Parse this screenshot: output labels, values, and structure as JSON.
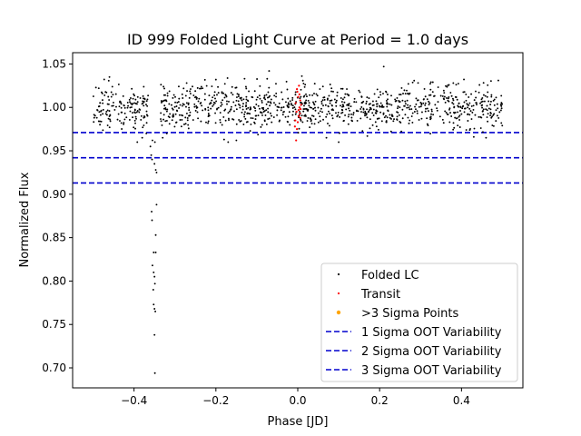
{
  "chart_data": {
    "type": "scatter",
    "title": "ID 999 Folded Light Curve at Period = 1.0 days",
    "xlabel": "Phase [JD]",
    "ylabel": "Normalized Flux",
    "xlim": [
      -0.55,
      0.55
    ],
    "ylim": [
      0.677,
      1.063
    ],
    "xticks": [
      -0.4,
      -0.2,
      0.0,
      0.2,
      0.4
    ],
    "xtick_labels": [
      "−0.4",
      "−0.2",
      "0.0",
      "0.2",
      "0.4"
    ],
    "yticks": [
      0.7,
      0.75,
      0.8,
      0.85,
      0.9,
      0.95,
      1.0,
      1.05
    ],
    "ytick_labels": [
      "0.70",
      "0.75",
      "0.80",
      "0.85",
      "0.90",
      "0.95",
      "1.00",
      "1.05"
    ],
    "grid": false,
    "legend_position": "bottom-right",
    "folded_phase_range": [
      -0.5,
      0.5
    ],
    "folded_flux_center": 1.0,
    "series": [
      {
        "name": "Folded LC",
        "kind": "scatter",
        "color": "#000000",
        "points": [
          [
            -0.36,
            0.955
          ],
          [
            -0.358,
            0.945
          ],
          [
            -0.356,
            0.94
          ],
          [
            -0.35,
            0.935
          ],
          [
            -0.347,
            0.928
          ],
          [
            -0.345,
            0.925
          ],
          [
            -0.357,
            0.88
          ],
          [
            -0.356,
            0.87
          ],
          [
            -0.345,
            0.888
          ],
          [
            -0.347,
            0.853
          ],
          [
            -0.352,
            0.833
          ],
          [
            -0.347,
            0.833
          ],
          [
            -0.355,
            0.818
          ],
          [
            -0.352,
            0.81
          ],
          [
            -0.35,
            0.805
          ],
          [
            -0.349,
            0.797
          ],
          [
            -0.353,
            0.79
          ],
          [
            -0.352,
            0.773
          ],
          [
            -0.35,
            0.768
          ],
          [
            -0.348,
            0.765
          ],
          [
            -0.35,
            0.738
          ],
          [
            -0.349,
            0.694
          ],
          [
            -0.355,
            0.962
          ],
          [
            -0.349,
            0.96
          ],
          [
            -0.37,
            0.97
          ],
          [
            -0.38,
            0.965
          ],
          [
            -0.392,
            0.96
          ],
          [
            -0.33,
            0.965
          ],
          [
            -0.32,
            0.97
          ],
          [
            0.21,
            1.047
          ],
          [
            -0.07,
            1.042
          ],
          [
            0.01,
            1.036
          ],
          [
            -0.46,
            1.035
          ],
          [
            -0.13,
            1.033
          ],
          [
            -0.2,
            1.032
          ],
          [
            0.49,
            1.031
          ],
          [
            0.33,
            1.029
          ],
          [
            0.38,
            1.028
          ],
          [
            0.07,
            0.965
          ],
          [
            0.1,
            0.96
          ],
          [
            0.17,
            0.967
          ],
          [
            -0.15,
            0.962
          ],
          [
            -0.17,
            0.96
          ],
          [
            -0.18,
            0.963
          ],
          [
            0.46,
            0.965
          ],
          [
            0.43,
            0.966
          ]
        ]
      },
      {
        "name": "Transit",
        "kind": "scatter",
        "color": "#ff0000",
        "points": [
          [
            -0.004,
            0.962
          ],
          [
            -0.002,
            0.975
          ],
          [
            0.0,
            0.983
          ],
          [
            0.002,
            0.99
          ],
          [
            -0.003,
            0.995
          ],
          [
            0.004,
            1.0
          ],
          [
            0.006,
            1.008
          ],
          [
            0.001,
            1.012
          ],
          [
            -0.001,
            1.018
          ],
          [
            0.003,
            1.025
          ],
          [
            0.007,
            0.998
          ],
          [
            0.005,
            0.993
          ],
          [
            -0.006,
            0.985
          ],
          [
            0.008,
            1.003
          ],
          [
            -0.005,
            1.005
          ],
          [
            0.002,
            0.997
          ],
          [
            0.004,
            1.015
          ],
          [
            -0.002,
            1.021
          ],
          [
            0.006,
            0.988
          ],
          [
            -0.007,
            0.978
          ]
        ]
      },
      {
        "name": ">3 Sigma Points",
        "kind": "scatter",
        "color": "#ffa500",
        "points": []
      },
      {
        "name": "1 Sigma OOT Variability",
        "kind": "hline",
        "color": "#0000cd",
        "y": 0.971
      },
      {
        "name": "2 Sigma OOT Variability",
        "kind": "hline",
        "color": "#0000cd",
        "y": 0.942
      },
      {
        "name": "3 Sigma OOT Variability",
        "kind": "hline",
        "color": "#0000cd",
        "y": 0.913
      }
    ]
  }
}
